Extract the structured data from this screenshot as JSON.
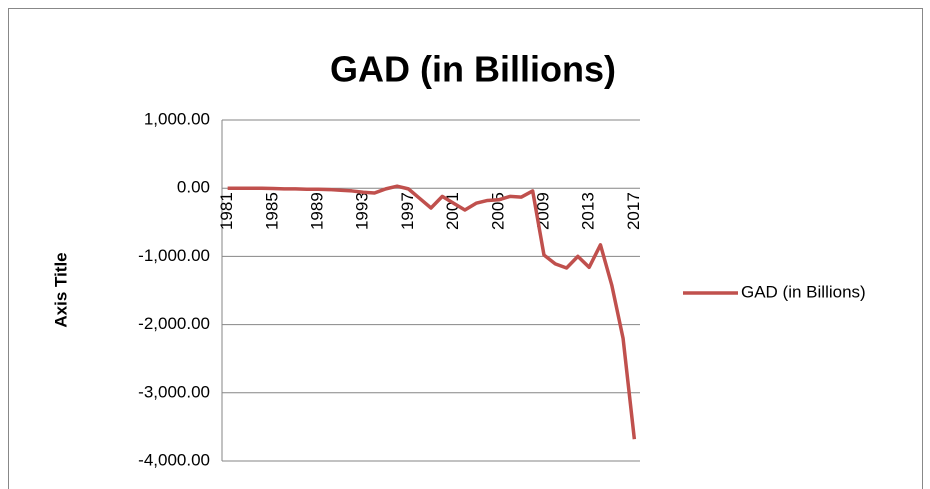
{
  "chart_data": {
    "type": "line",
    "title": "GAD (in Billions)",
    "y_label": "Axis Title",
    "categories": [
      "1981",
      null,
      null,
      null,
      "1985",
      null,
      null,
      null,
      "1989",
      null,
      null,
      null,
      "1993",
      null,
      null,
      null,
      "1997",
      null,
      null,
      null,
      "2001",
      null,
      null,
      null,
      "2005",
      null,
      null,
      null,
      "2009",
      null,
      null,
      null,
      "2013",
      null,
      null,
      null,
      "2017"
    ],
    "series": [
      {
        "name": "GAD (in Billions)",
        "color": "#c0504d",
        "values": [
          0,
          0,
          0,
          0,
          -5,
          -10,
          -10,
          -15,
          -15,
          -20,
          -30,
          -40,
          -60,
          -70,
          -10,
          30,
          -10,
          -150,
          -290,
          -120,
          -220,
          -320,
          -220,
          -180,
          -170,
          -120,
          -130,
          -40,
          -980,
          -1110,
          -1170,
          -1000,
          -1160,
          -830,
          -1420,
          -2200,
          -3680
        ]
      }
    ],
    "ylim": [
      -4000,
      1000
    ],
    "yticks": [
      {
        "value": -4000,
        "label": "-4,000.00"
      },
      {
        "value": -3000,
        "label": "-3,000.00"
      },
      {
        "value": -2000,
        "label": "-2,000.00"
      },
      {
        "value": -1000,
        "label": "-1,000.00"
      },
      {
        "value": 0,
        "label": "0.00"
      },
      {
        "value": 1000,
        "label": "1,000.00"
      }
    ],
    "grid": true,
    "legend": "right"
  }
}
